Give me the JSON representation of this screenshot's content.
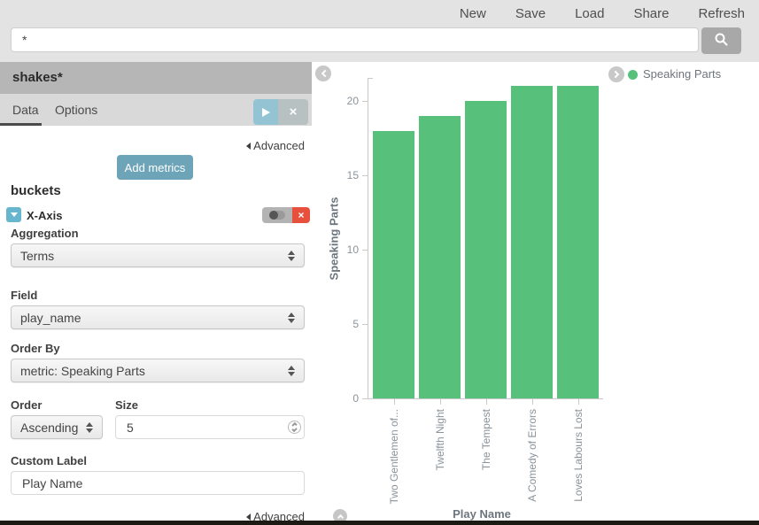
{
  "topbar": {
    "nav": [
      "New",
      "Save",
      "Load",
      "Share",
      "Refresh"
    ],
    "search": {
      "value": "*"
    }
  },
  "sidebar": {
    "index_title": "shakes*",
    "tabs": [
      {
        "label": "Data",
        "active": true
      },
      {
        "label": "Options",
        "active": false
      }
    ],
    "advanced_top": "Advanced",
    "add_metrics_label": "Add metrics",
    "buckets_heading": "buckets",
    "x_axis": {
      "label": "X-Axis",
      "aggregation": {
        "label": "Aggregation",
        "value": "Terms"
      },
      "field": {
        "label": "Field",
        "value": "play_name"
      },
      "order_by": {
        "label": "Order By",
        "value": "metric: Speaking Parts"
      },
      "order": {
        "label": "Order",
        "value": "Ascending"
      },
      "size": {
        "label": "Size",
        "value": "5"
      },
      "custom_label": {
        "label": "Custom Label",
        "value": "Play Name"
      }
    },
    "advanced_bottom": "Advanced"
  },
  "colors": {
    "accent_teal": "#6da4b8",
    "light_blue": "#94c3d3",
    "red": "#e6503c",
    "bar_green": "#57c17b"
  },
  "chart_data": {
    "type": "bar",
    "title": "",
    "categories": [
      "Two Gentlemen of...",
      "Twelfth Night",
      "The Tempest",
      "A Comedy of Errors",
      "Loves Labours Lost"
    ],
    "values": [
      18,
      19,
      20,
      21,
      21
    ],
    "xlabel": "Play Name",
    "ylabel": "Speaking Parts",
    "ylim": [
      0,
      21.5
    ],
    "yticks": [
      0,
      5,
      10,
      15,
      20
    ],
    "grid": false,
    "legend_position": "top-right",
    "legend": [
      {
        "label": "Speaking Parts",
        "color": "#57c17b"
      }
    ],
    "bar_color": "#57c17b"
  }
}
